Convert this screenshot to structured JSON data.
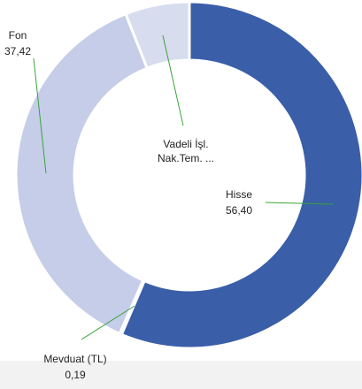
{
  "chart_data": {
    "type": "donut",
    "categories": [
      "Hisse",
      "Mevduat (TL)",
      "Fon",
      "Vadeli İşl. Nak.Tem. ..."
    ],
    "values": [
      56.4,
      0.19,
      37.42,
      5.99
    ],
    "value_labels": [
      "56,40",
      "0,19",
      "37,42",
      null
    ],
    "colors": [
      "#3a5ea8",
      "#4a6db3",
      "#c5cde8",
      "#d7dcee"
    ]
  }
}
